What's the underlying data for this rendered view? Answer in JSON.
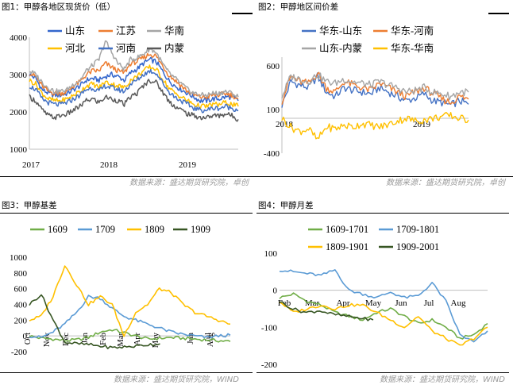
{
  "panels": [
    {
      "title": "图1：甲醇各地区现货价（低）",
      "source": "数据来源：盛达期货研究院，卓创",
      "chart_data": {
        "type": "line",
        "ylim": [
          1000,
          4000
        ],
        "yticks": [
          "1000",
          "2000",
          "3000",
          "4000"
        ],
        "xticks": [
          "2017",
          "2018",
          "2019"
        ],
        "x_range": [
          "2017-01",
          "2019-10"
        ],
        "legend_position": "top",
        "series": [
          {
            "name": "山东",
            "color": "#3366cc",
            "values": [
              3000,
              2900,
              2600,
              2500,
              2450,
              2450,
              2500,
              2600,
              2700,
              2850,
              2900,
              2850,
              2950,
              3000,
              2950,
              2850,
              3050,
              3150,
              3300,
              3400,
              3350,
              3100,
              2850,
              2700,
              2600,
              2500,
              2400,
              2300,
              2300,
              2350,
              2350,
              2400,
              2400,
              2300
            ]
          },
          {
            "name": "江苏",
            "color": "#ed7d31",
            "values": [
              3050,
              2950,
              2700,
              2550,
              2500,
              2500,
              2550,
              2700,
              2800,
              3000,
              3100,
              3100,
              3300,
              3200,
              3100,
              3050,
              3300,
              3350,
              3450,
              3550,
              3500,
              3250,
              3000,
              2850,
              2700,
              2550,
              2450,
              2400,
              2400,
              2450,
              2450,
              2500,
              2450,
              2350
            ]
          },
          {
            "name": "华南",
            "color": "#a5a5a5",
            "values": [
              3100,
              3000,
              2800,
              2650,
              2550,
              2550,
              2600,
              2750,
              2850,
              3100,
              3250,
              3400,
              3900,
              3600,
              3300,
              3150,
              3400,
              3450,
              3550,
              3700,
              3600,
              3300,
              3050,
              2900,
              2750,
              2600,
              2500,
              2450,
              2450,
              2500,
              2500,
              2550,
              2500,
              2400
            ]
          },
          {
            "name": "河北",
            "color": "#ffc000",
            "values": [
              2850,
              2750,
              2500,
              2350,
              2300,
              2300,
              2350,
              2450,
              2550,
              2700,
              2750,
              2650,
              2800,
              2750,
              2700,
              2650,
              2850,
              2950,
              3100,
              3200,
              3150,
              2900,
              2650,
              2500,
              2400,
              2300,
              2200,
              2150,
              2150,
              2200,
              2200,
              2250,
              2200,
              2150
            ]
          },
          {
            "name": "河南",
            "color": "#4472c4",
            "values": [
              2700,
              2600,
              2350,
              2250,
              2200,
              2200,
              2250,
              2350,
              2450,
              2600,
              2650,
              2550,
              2700,
              2650,
              2600,
              2550,
              2750,
              2850,
              3000,
              3100,
              3050,
              2800,
              2550,
              2400,
              2300,
              2200,
              2100,
              2050,
              2050,
              2100,
              2100,
              2150,
              2100,
              2050
            ]
          },
          {
            "name": "内蒙",
            "color": "#595959",
            "values": [
              2400,
              2300,
              2050,
              1900,
              1850,
              1900,
              1950,
              2050,
              2150,
              2300,
              2350,
              2250,
              2400,
              2350,
              2300,
              2200,
              2400,
              2500,
              2700,
              2850,
              2800,
              2550,
              2300,
              2150,
              2050,
              1950,
              1900,
              1850,
              1850,
              1900,
              1900,
              1950,
              1900,
              1800
            ]
          }
        ]
      }
    },
    {
      "title": "图2：甲醇地区间价差",
      "source": "数据来源：盛达期货研究院，卓创",
      "chart_data": {
        "type": "line",
        "ylim": [
          -400,
          700
        ],
        "yticks": [
          "-400",
          "100",
          "600"
        ],
        "xticks": [
          "2018",
          "2019"
        ],
        "x_range": [
          "2017-12",
          "2019-10"
        ],
        "legend_position": "top",
        "series": [
          {
            "name": "华东-山东",
            "color": "#4472c4",
            "values": [
              150,
              420,
              380,
              350,
              480,
              300,
              250,
              350,
              320,
              300,
              280,
              350,
              300,
              250,
              200,
              230,
              280,
              200,
              180,
              150,
              200,
              160
            ]
          },
          {
            "name": "华东-河南",
            "color": "#ed7d31",
            "values": [
              200,
              480,
              420,
              400,
              520,
              350,
              300,
              420,
              380,
              350,
              320,
              400,
              350,
              300,
              250,
              300,
              350,
              280,
              220,
              180,
              250,
              220
            ]
          },
          {
            "name": "山东-内蒙",
            "color": "#a5a5a5",
            "values": [
              250,
              480,
              450,
              420,
              500,
              420,
              400,
              450,
              420,
              400,
              380,
              420,
              380,
              350,
              300,
              320,
              350,
              300,
              280,
              250,
              300,
              300
            ]
          },
          {
            "name": "华东-华南",
            "color": "#ffc000",
            "values": [
              0,
              -100,
              -150,
              -120,
              -250,
              -100,
              -120,
              -80,
              -100,
              -60,
              -80,
              -100,
              -70,
              -30,
              0,
              -30,
              -20,
              0,
              20,
              30,
              0,
              -20
            ]
          }
        ]
      }
    },
    {
      "title": "图3：甲醇基差",
      "source": "数据来源：盛达期货研究院，WIND",
      "chart_data": {
        "type": "line",
        "ylim": [
          -200,
          1000
        ],
        "yticks": [
          "-200",
          "0",
          "200",
          "400",
          "600",
          "800",
          "1000"
        ],
        "xticks": [
          "Oct",
          "Nov",
          "Dec",
          "Jan",
          "Feb",
          "Mar",
          "Apr",
          "May",
          "Jun",
          "Jul",
          "Aug"
        ],
        "legend_position": "top",
        "series": [
          {
            "name": "1609",
            "color": "#70ad47",
            "values": [
              0,
              -30,
              -40,
              -60,
              -50,
              -20,
              50,
              80,
              40,
              0,
              -40,
              -30,
              -20,
              -30,
              -40,
              -50,
              -60,
              -70
            ]
          },
          {
            "name": "1709",
            "color": "#5b9bd5",
            "values": [
              0,
              -20,
              50,
              150,
              300,
              500,
              480,
              350,
              250,
              200,
              150,
              100,
              50,
              20,
              0,
              -20,
              0,
              10
            ]
          },
          {
            "name": "1809",
            "color": "#ffc000",
            "values": [
              200,
              250,
              500,
              900,
              650,
              400,
              500,
              400,
              0,
              300,
              400,
              600,
              550,
              400,
              300,
              250,
              200,
              150
            ]
          },
          {
            "name": "1909",
            "color": "#375623",
            "values": [
              400,
              530,
              200,
              -80,
              -100,
              -110,
              -130,
              -150,
              -140,
              -130,
              -110,
              -100
            ]
          }
        ]
      }
    },
    {
      "title": "图4：甲醇月差",
      "source": "数据来源：盛达期货研究院，WIND",
      "chart_data": {
        "type": "line",
        "ylim": [
          -200,
          100
        ],
        "yticks": [
          "-200",
          "-100",
          "0",
          "100"
        ],
        "xticks": [
          "Feb",
          "Mar",
          "Apr",
          "May",
          "Jun",
          "Jul",
          "Aug"
        ],
        "legend_position": "top",
        "series": [
          {
            "name": "1609-1701",
            "color": "#70ad47",
            "values": [
              -20,
              -10,
              -30,
              -40,
              -60,
              -70,
              -80,
              -60,
              -50,
              -70,
              -90,
              -80,
              -100,
              -130,
              -120,
              -90
            ]
          },
          {
            "name": "1709-1801",
            "color": "#5b9bd5",
            "values": [
              55,
              50,
              45,
              40,
              55,
              0,
              -10,
              -20,
              -5,
              -20,
              -15,
              20,
              -30,
              -120,
              -140,
              -110
            ]
          },
          {
            "name": "1809-1901",
            "color": "#ffc000",
            "values": [
              -30,
              -60,
              -50,
              -40,
              -50,
              -40,
              -40,
              -60,
              -80,
              -100,
              -70,
              -110,
              -130,
              -150,
              -130,
              -100
            ]
          },
          {
            "name": "1909-2001",
            "color": "#375623",
            "values": [
              -30,
              -50,
              -60,
              -55,
              -65,
              -70,
              -75,
              -80
            ]
          }
        ]
      }
    }
  ]
}
